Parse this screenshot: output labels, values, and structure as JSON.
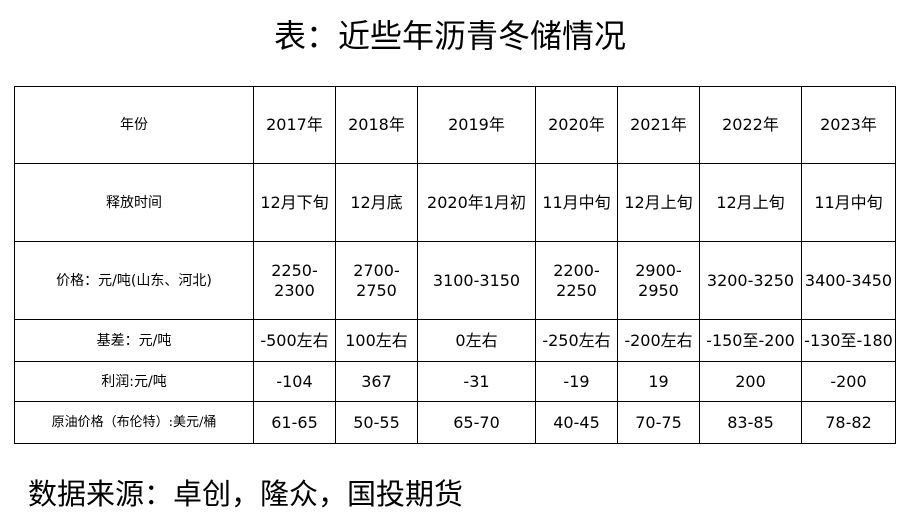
{
  "title": "表：近些年沥青冬储情况",
  "table": {
    "header": {
      "label": "年份",
      "years": [
        "2017年",
        "2018年",
        "2019年",
        "2020年",
        "2021年",
        "2022年",
        "2023年"
      ]
    },
    "rows": [
      {
        "label": "释放时间",
        "cells": [
          "12月下旬",
          "12月底",
          "2020年1月初",
          "11月中旬",
          "12月上旬",
          "12月上旬",
          "11月中旬"
        ]
      },
      {
        "label": "价格：元/吨(山东、河北)",
        "cells": [
          "2250-2300",
          "2700-2750",
          "3100-3150",
          "2200-2250",
          "2900-2950",
          "3200-3250",
          "3400-3450"
        ]
      },
      {
        "label": "基差：元/吨",
        "cells": [
          "-500左右",
          "100左右",
          "0左右",
          "-250左右",
          "-200左右",
          "-150至-200",
          "-130至-180"
        ]
      },
      {
        "label": "利润:元/吨",
        "cells": [
          "-104",
          "367",
          "-31",
          "-19",
          "19",
          "200",
          "-200"
        ]
      },
      {
        "label": "原油价格（布伦特）:美元/桶",
        "cells": [
          "61-65",
          "50-55",
          "65-70",
          "40-45",
          "70-75",
          "83-85",
          "78-82"
        ]
      }
    ]
  },
  "source": "数据来源：卓创，隆众，国投期货"
}
